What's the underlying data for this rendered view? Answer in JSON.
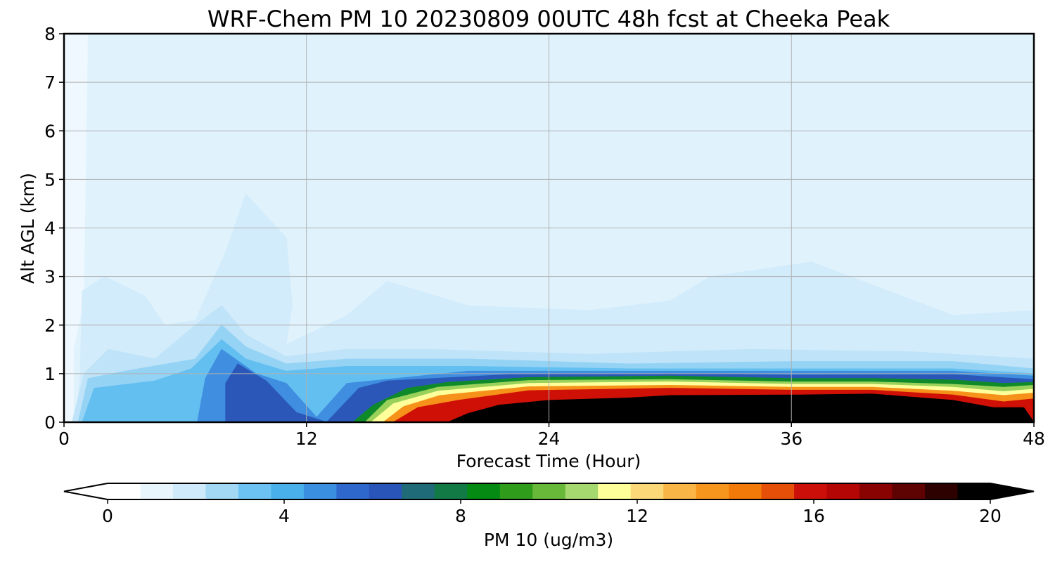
{
  "chart_data": {
    "type": "heatmap",
    "title": "WRF-Chem PM 10  20230809 00UTC 48h fcst at Cheeka Peak",
    "xlabel": "Forecast Time (Hour)",
    "ylabel": "Alt AGL (km)",
    "xlim": [
      0,
      48
    ],
    "ylim": [
      0,
      8
    ],
    "x_ticks": [
      0,
      12,
      24,
      36,
      48
    ],
    "y_ticks": [
      0,
      1,
      2,
      3,
      4,
      5,
      6,
      7,
      8
    ],
    "grid": true,
    "colorbar": {
      "label": "PM 10  (ug/m3)",
      "ticks": [
        0,
        4,
        8,
        12,
        16,
        20
      ],
      "range": [
        0,
        20
      ],
      "extend": "both",
      "colors": [
        "#ffffff",
        "#e9f5fc",
        "#cfeafa",
        "#a3d8f5",
        "#6cc3f3",
        "#49b0ec",
        "#3a8fe0",
        "#2e68cc",
        "#2a55b8",
        "#1f6c78",
        "#117a45",
        "#058a13",
        "#2f9c1c",
        "#68b93a",
        "#a6d870",
        "#ffff99",
        "#fcd878",
        "#f9b545",
        "#f6961c",
        "#f27a09",
        "#e64f08",
        "#cc0f08",
        "#b40605",
        "#890303",
        "#5e0202",
        "#2e0101",
        "#000000"
      ]
    },
    "contour_regions": [
      {
        "level": 0.5,
        "color": "#e0f3fd",
        "points": [
          [
            0.5,
            0
          ],
          [
            0.5,
            1.5
          ],
          [
            1,
            2.5
          ],
          [
            1.2,
            8
          ],
          [
            48,
            8
          ],
          [
            48,
            0
          ]
        ]
      },
      {
        "level": 1.0,
        "color": "#d3ecfb",
        "points": [
          [
            0.6,
            0
          ],
          [
            0.8,
            1.0
          ],
          [
            0.9,
            2.7
          ],
          [
            2,
            3.0
          ],
          [
            4,
            2.6
          ],
          [
            5,
            2.0
          ],
          [
            6.5,
            2.1
          ],
          [
            8,
            3.5
          ],
          [
            9,
            4.7
          ],
          [
            11,
            3.8
          ],
          [
            11.3,
            2.4
          ],
          [
            11,
            1.6
          ],
          [
            14,
            2.2
          ],
          [
            16,
            2.9
          ],
          [
            20,
            2.4
          ],
          [
            26,
            2.3
          ],
          [
            30,
            2.5
          ],
          [
            32,
            3.0
          ],
          [
            37,
            3.3
          ],
          [
            44,
            2.2
          ],
          [
            48,
            2.3
          ],
          [
            48,
            0
          ]
        ]
      },
      {
        "level": 1.5,
        "color": "#bfe3f8",
        "points": [
          [
            0.4,
            0
          ],
          [
            1,
            1.0
          ],
          [
            2.2,
            1.5
          ],
          [
            4.5,
            1.3
          ],
          [
            6.5,
            2.0
          ],
          [
            7.8,
            2.4
          ],
          [
            9,
            1.8
          ],
          [
            11,
            1.35
          ],
          [
            14,
            1.5
          ],
          [
            18,
            1.5
          ],
          [
            26,
            1.4
          ],
          [
            34,
            1.5
          ],
          [
            42,
            1.45
          ],
          [
            48,
            1.3
          ],
          [
            48,
            0
          ]
        ]
      },
      {
        "level": 2.5,
        "color": "#95d3f5",
        "points": [
          [
            0.7,
            0
          ],
          [
            1.2,
            0.9
          ],
          [
            3,
            1.05
          ],
          [
            6.5,
            1.3
          ],
          [
            7.8,
            2.0
          ],
          [
            9,
            1.55
          ],
          [
            11,
            1.2
          ],
          [
            14,
            1.3
          ],
          [
            20,
            1.3
          ],
          [
            28,
            1.2
          ],
          [
            36,
            1.25
          ],
          [
            44,
            1.25
          ],
          [
            48,
            1.1
          ],
          [
            48,
            0
          ]
        ]
      },
      {
        "level": 3.5,
        "color": "#64bff1",
        "points": [
          [
            0.9,
            0
          ],
          [
            1.5,
            0.7
          ],
          [
            4.5,
            0.85
          ],
          [
            6.3,
            1.1
          ],
          [
            7.8,
            1.7
          ],
          [
            9,
            1.3
          ],
          [
            11,
            1.05
          ],
          [
            14,
            1.15
          ],
          [
            20,
            1.15
          ],
          [
            28,
            1.1
          ],
          [
            36,
            1.1
          ],
          [
            44,
            1.1
          ],
          [
            48,
            1.0
          ],
          [
            48,
            0
          ]
        ]
      },
      {
        "level": 4.5,
        "color": "#3f8ee0",
        "points": [
          [
            6.6,
            0
          ],
          [
            7,
            0.9
          ],
          [
            7.8,
            1.5
          ],
          [
            9.5,
            1.0
          ],
          [
            11,
            0.8
          ],
          [
            12.5,
            0.1
          ],
          [
            14,
            0.8
          ],
          [
            20,
            1.05
          ],
          [
            28,
            1.05
          ],
          [
            36,
            1.05
          ],
          [
            44,
            1.05
          ],
          [
            48,
            0.95
          ],
          [
            48,
            0
          ]
        ]
      },
      {
        "level": 5.5,
        "color": "#2b58b8",
        "points": [
          [
            8,
            0
          ],
          [
            8,
            0.8
          ],
          [
            8.6,
            1.2
          ],
          [
            10,
            0.85
          ],
          [
            11.5,
            0.2
          ],
          [
            13,
            0
          ],
          [
            14.6,
            0.7
          ],
          [
            16,
            0.85
          ],
          [
            22,
            0.98
          ],
          [
            30,
            1.0
          ],
          [
            36,
            0.97
          ],
          [
            44,
            0.98
          ],
          [
            48,
            0.88
          ],
          [
            48,
            0
          ]
        ]
      },
      {
        "level": 7.0,
        "color": "#0e8a2a",
        "points": [
          [
            14.3,
            0
          ],
          [
            15.3,
            0.35
          ],
          [
            17,
            0.7
          ],
          [
            19,
            0.82
          ],
          [
            23,
            0.92
          ],
          [
            30,
            0.95
          ],
          [
            36,
            0.9
          ],
          [
            40,
            0.9
          ],
          [
            44,
            0.87
          ],
          [
            46.5,
            0.8
          ],
          [
            48,
            0.82
          ],
          [
            48,
            0
          ]
        ]
      },
      {
        "level": 8.5,
        "color": "#9ad15a",
        "points": [
          [
            14.9,
            0
          ],
          [
            16,
            0.45
          ],
          [
            18.5,
            0.72
          ],
          [
            23,
            0.86
          ],
          [
            30,
            0.88
          ],
          [
            36,
            0.83
          ],
          [
            40,
            0.83
          ],
          [
            44,
            0.78
          ],
          [
            46.5,
            0.72
          ],
          [
            48,
            0.76
          ],
          [
            48,
            0
          ]
        ]
      },
      {
        "level": 10.0,
        "color": "#ffff9c",
        "points": [
          [
            15.2,
            0
          ],
          [
            16.3,
            0.38
          ],
          [
            18.5,
            0.64
          ],
          [
            23,
            0.8
          ],
          [
            30,
            0.83
          ],
          [
            36,
            0.78
          ],
          [
            40,
            0.78
          ],
          [
            44,
            0.72
          ],
          [
            46.5,
            0.63
          ],
          [
            48,
            0.68
          ],
          [
            48,
            0
          ]
        ]
      },
      {
        "level": 12.0,
        "color": "#f6921a",
        "points": [
          [
            15.8,
            0
          ],
          [
            16.8,
            0.32
          ],
          [
            18.6,
            0.55
          ],
          [
            23,
            0.73
          ],
          [
            30,
            0.76
          ],
          [
            36,
            0.72
          ],
          [
            40,
            0.72
          ],
          [
            44,
            0.64
          ],
          [
            46.5,
            0.55
          ],
          [
            48,
            0.6
          ],
          [
            48,
            0
          ]
        ]
      },
      {
        "level": 15.0,
        "color": "#cf1006",
        "points": [
          [
            16.3,
            0
          ],
          [
            17.5,
            0.3
          ],
          [
            19.5,
            0.45
          ],
          [
            23,
            0.65
          ],
          [
            30,
            0.7
          ],
          [
            36,
            0.66
          ],
          [
            40,
            0.66
          ],
          [
            44,
            0.56
          ],
          [
            46.5,
            0.42
          ],
          [
            48,
            0.48
          ],
          [
            48,
            0
          ]
        ]
      },
      {
        "level": 20.0,
        "color": "#000000",
        "points": [
          [
            19,
            0
          ],
          [
            20,
            0.18
          ],
          [
            21.5,
            0.35
          ],
          [
            24,
            0.45
          ],
          [
            28,
            0.5
          ],
          [
            30,
            0.55
          ],
          [
            36,
            0.56
          ],
          [
            40,
            0.58
          ],
          [
            44,
            0.45
          ],
          [
            46,
            0.3
          ],
          [
            47.5,
            0.3
          ],
          [
            48,
            0
          ]
        ]
      }
    ]
  }
}
